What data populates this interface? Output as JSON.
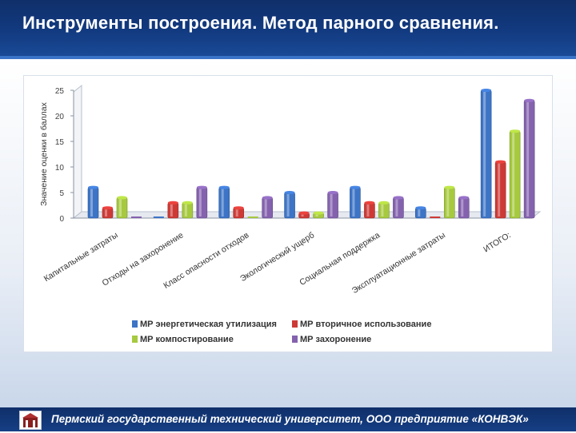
{
  "header": {
    "title": "Инструменты построения. Метод парного сравнения."
  },
  "footer": {
    "text": "Пермский государственный технический университет, ООО предприятие «КОНВЭК»",
    "logo_icon": "university-logo-icon"
  },
  "colors": {
    "series": [
      "#3d74c6",
      "#cd3a36",
      "#a6c93f",
      "#8462ae"
    ]
  },
  "chart_data": {
    "type": "bar",
    "ylabel": "Значение оценки в баллах",
    "xlabel": "",
    "ylim": [
      0,
      25
    ],
    "yticks": [
      0,
      5,
      10,
      15,
      20,
      25
    ],
    "categories": [
      "Капитальные затраты",
      "Отходы на захоронение",
      "Класс опасности отходов",
      "Экологический ущерб",
      "Социальная поддержка",
      "Эксплуатационные затраты",
      "ИТОГО:"
    ],
    "series": [
      {
        "name": "МР энергетическая утилизация",
        "values": [
          6,
          0,
          6,
          5,
          6,
          2,
          25
        ]
      },
      {
        "name": "МР вторичное использование",
        "values": [
          2,
          3,
          2,
          1,
          3,
          0,
          11
        ]
      },
      {
        "name": "МР компостирование",
        "values": [
          4,
          3,
          0,
          1,
          3,
          6,
          17
        ]
      },
      {
        "name": "МР захоронение",
        "values": [
          0,
          6,
          4,
          5,
          4,
          4,
          23
        ]
      }
    ],
    "legend": "bottom",
    "grid": false
  }
}
